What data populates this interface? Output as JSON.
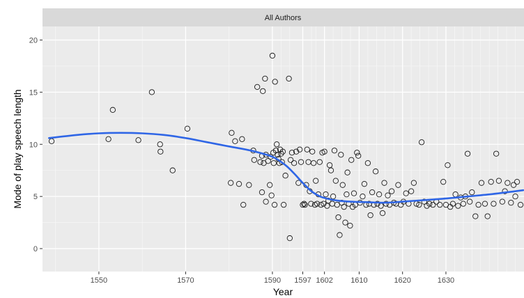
{
  "chart_data": {
    "type": "scatter",
    "facet_label": "All Authors",
    "xlabel": "Year",
    "ylabel": "Mode of play speech length",
    "xlim": [
      1537,
      1648
    ],
    "ylim": [
      -2.2,
      21.3
    ],
    "x_ticks": [
      1550,
      1570,
      1590,
      1597,
      1602,
      1610,
      1620,
      1630
    ],
    "x_tick_labels": [
      "1550",
      "1570",
      "1590",
      "1597",
      "1602",
      "1610",
      "1620",
      "1630"
    ],
    "x_minor_gridlines": [
      1540,
      1560,
      1580,
      1592,
      1594,
      1599,
      1600,
      1604,
      1606,
      1608,
      1612,
      1614,
      1616,
      1618,
      1622,
      1624,
      1626,
      1628,
      1632,
      1634,
      1636,
      1638,
      1640,
      1642,
      1644,
      1646
    ],
    "y_ticks": [
      0,
      5,
      10,
      15,
      20
    ],
    "y_tick_labels": [
      "0",
      "5",
      "10",
      "15",
      "20"
    ],
    "grid": true,
    "background_color": "#ebebeb",
    "facet_strip_color": "#d9d9d9",
    "trend_color": "#2f66e6",
    "point_edge_color": "#1a1a1a",
    "points": [
      [
        1539.1,
        10.3
      ],
      [
        1552.2,
        10.5
      ],
      [
        1553.2,
        13.3
      ],
      [
        1559.1,
        10.4
      ],
      [
        1562.2,
        15.0
      ],
      [
        1564.1,
        10.0
      ],
      [
        1564.2,
        9.3
      ],
      [
        1567.0,
        7.5
      ],
      [
        1570.4,
        11.5
      ],
      [
        1580.4,
        6.3
      ],
      [
        1580.6,
        11.1
      ],
      [
        1581.4,
        10.3
      ],
      [
        1582.3,
        6.2
      ],
      [
        1583.0,
        10.5
      ],
      [
        1583.3,
        4.2
      ],
      [
        1584.6,
        6.1
      ],
      [
        1585.6,
        9.4
      ],
      [
        1585.8,
        8.5
      ],
      [
        1586.5,
        15.5
      ],
      [
        1587.2,
        8.3
      ],
      [
        1587.6,
        8.9
      ],
      [
        1587.8,
        15.1
      ],
      [
        1587.6,
        5.4
      ],
      [
        1588.0,
        8.2
      ],
      [
        1588.3,
        16.3
      ],
      [
        1588.5,
        4.5
      ],
      [
        1588.5,
        9.0
      ],
      [
        1589.0,
        8.4
      ],
      [
        1589.4,
        6.1
      ],
      [
        1589.6,
        8.8
      ],
      [
        1589.8,
        5.1
      ],
      [
        1590.0,
        18.5
      ],
      [
        1590.2,
        9.2
      ],
      [
        1590.3,
        8.2
      ],
      [
        1590.5,
        4.2
      ],
      [
        1590.6,
        16.0
      ],
      [
        1590.8,
        9.4
      ],
      [
        1591.0,
        10.0
      ],
      [
        1591.2,
        9.0
      ],
      [
        1591.4,
        8.6
      ],
      [
        1591.6,
        8.2
      ],
      [
        1591.8,
        9.5
      ],
      [
        1592.0,
        9.1
      ],
      [
        1592.2,
        8.3
      ],
      [
        1592.4,
        9.3
      ],
      [
        1592.6,
        4.2
      ],
      [
        1593.0,
        7.0
      ],
      [
        1593.8,
        16.3
      ],
      [
        1594.0,
        1.0
      ],
      [
        1594.2,
        8.5
      ],
      [
        1594.5,
        9.2
      ],
      [
        1595.0,
        8.2
      ],
      [
        1595.5,
        9.3
      ],
      [
        1596.0,
        6.3
      ],
      [
        1596.3,
        9.5
      ],
      [
        1596.6,
        8.3
      ],
      [
        1597.0,
        4.2
      ],
      [
        1597.3,
        4.3
      ],
      [
        1597.5,
        4.2
      ],
      [
        1597.8,
        6.1
      ],
      [
        1598.0,
        9.5
      ],
      [
        1598.3,
        8.3
      ],
      [
        1598.6,
        5.5
      ],
      [
        1598.9,
        4.3
      ],
      [
        1599.2,
        9.3
      ],
      [
        1599.5,
        8.2
      ],
      [
        1599.8,
        4.2
      ],
      [
        1600.0,
        6.5
      ],
      [
        1600.3,
        4.3
      ],
      [
        1600.6,
        5.2
      ],
      [
        1600.9,
        8.3
      ],
      [
        1601.2,
        4.2
      ],
      [
        1601.5,
        9.2
      ],
      [
        1601.8,
        4.3
      ],
      [
        1602.0,
        9.3
      ],
      [
        1602.3,
        5.2
      ],
      [
        1602.6,
        4.1
      ],
      [
        1602.9,
        4.6
      ],
      [
        1603.2,
        8.0
      ],
      [
        1603.5,
        7.5
      ],
      [
        1603.8,
        4.3
      ],
      [
        1604.0,
        5.0
      ],
      [
        1604.3,
        9.4
      ],
      [
        1604.6,
        6.5
      ],
      [
        1604.9,
        4.2
      ],
      [
        1605.2,
        3.0
      ],
      [
        1605.5,
        1.3
      ],
      [
        1605.8,
        9.0
      ],
      [
        1606.0,
        4.4
      ],
      [
        1606.2,
        6.1
      ],
      [
        1606.5,
        4.0
      ],
      [
        1606.8,
        2.5
      ],
      [
        1607.1,
        5.2
      ],
      [
        1607.3,
        7.3
      ],
      [
        1607.6,
        4.3
      ],
      [
        1607.9,
        2.2
      ],
      [
        1608.2,
        8.5
      ],
      [
        1608.5,
        4.0
      ],
      [
        1608.8,
        5.3
      ],
      [
        1609.1,
        4.2
      ],
      [
        1609.5,
        9.2
      ],
      [
        1609.8,
        8.9
      ],
      [
        1610.2,
        4.4
      ],
      [
        1610.8,
        5.0
      ],
      [
        1611.2,
        6.2
      ],
      [
        1611.6,
        4.2
      ],
      [
        1612.0,
        8.2
      ],
      [
        1612.3,
        4.3
      ],
      [
        1612.6,
        3.2
      ],
      [
        1613.0,
        5.4
      ],
      [
        1613.4,
        4.2
      ],
      [
        1613.8,
        7.4
      ],
      [
        1614.2,
        4.3
      ],
      [
        1614.6,
        5.2
      ],
      [
        1615.0,
        4.1
      ],
      [
        1615.4,
        3.4
      ],
      [
        1615.8,
        6.3
      ],
      [
        1616.2,
        4.3
      ],
      [
        1616.6,
        5.1
      ],
      [
        1617.0,
        4.2
      ],
      [
        1617.5,
        5.5
      ],
      [
        1618.0,
        4.4
      ],
      [
        1618.5,
        4.3
      ],
      [
        1619.0,
        6.1
      ],
      [
        1619.6,
        4.2
      ],
      [
        1620.2,
        4.5
      ],
      [
        1620.8,
        5.3
      ],
      [
        1621.4,
        4.3
      ],
      [
        1622.0,
        5.5
      ],
      [
        1622.6,
        6.3
      ],
      [
        1623.2,
        4.3
      ],
      [
        1623.8,
        4.2
      ],
      [
        1624.4,
        10.2
      ],
      [
        1625.0,
        4.5
      ],
      [
        1625.6,
        4.1
      ],
      [
        1626.2,
        4.3
      ],
      [
        1627.0,
        4.2
      ],
      [
        1627.8,
        4.5
      ],
      [
        1628.6,
        4.2
      ],
      [
        1629.4,
        6.4
      ],
      [
        1630.0,
        4.2
      ],
      [
        1630.4,
        8.0
      ],
      [
        1631.0,
        4.0
      ],
      [
        1631.6,
        4.3
      ],
      [
        1632.2,
        5.2
      ],
      [
        1632.8,
        4.1
      ],
      [
        1633.4,
        4.9
      ],
      [
        1634.0,
        4.3
      ],
      [
        1634.5,
        5.0
      ],
      [
        1635.0,
        9.1
      ],
      [
        1635.5,
        4.5
      ],
      [
        1636.0,
        5.4
      ],
      [
        1636.8,
        3.1
      ],
      [
        1637.5,
        4.2
      ],
      [
        1638.2,
        6.3
      ],
      [
        1639.0,
        4.3
      ],
      [
        1639.6,
        3.1
      ],
      [
        1640.4,
        6.4
      ],
      [
        1641.0,
        4.3
      ],
      [
        1641.6,
        9.1
      ],
      [
        1642.2,
        6.5
      ],
      [
        1643.0,
        4.5
      ],
      [
        1643.6,
        5.5
      ],
      [
        1644.2,
        6.3
      ],
      [
        1645.0,
        4.4
      ],
      [
        1645.6,
        6.1
      ],
      [
        1646.0,
        5.0
      ],
      [
        1646.4,
        6.4
      ],
      [
        1647.2,
        4.2
      ]
    ],
    "trend_line": [
      [
        1538.5,
        10.6
      ],
      [
        1545,
        10.9
      ],
      [
        1550,
        11.05
      ],
      [
        1555,
        11.1
      ],
      [
        1560,
        11.05
      ],
      [
        1565,
        10.9
      ],
      [
        1570,
        10.6
      ],
      [
        1575,
        10.2
      ],
      [
        1580,
        9.8
      ],
      [
        1585,
        9.4
      ],
      [
        1590,
        8.8
      ],
      [
        1593,
        8.0
      ],
      [
        1595,
        7.2
      ],
      [
        1597,
        6.3
      ],
      [
        1599,
        5.5
      ],
      [
        1601,
        5.0
      ],
      [
        1603,
        4.75
      ],
      [
        1605,
        4.6
      ],
      [
        1608,
        4.5
      ],
      [
        1612,
        4.45
      ],
      [
        1616,
        4.4
      ],
      [
        1620,
        4.5
      ],
      [
        1625,
        4.65
      ],
      [
        1630,
        4.8
      ],
      [
        1635,
        5.0
      ],
      [
        1640,
        5.2
      ],
      [
        1644,
        5.4
      ],
      [
        1647.8,
        5.6
      ]
    ]
  }
}
